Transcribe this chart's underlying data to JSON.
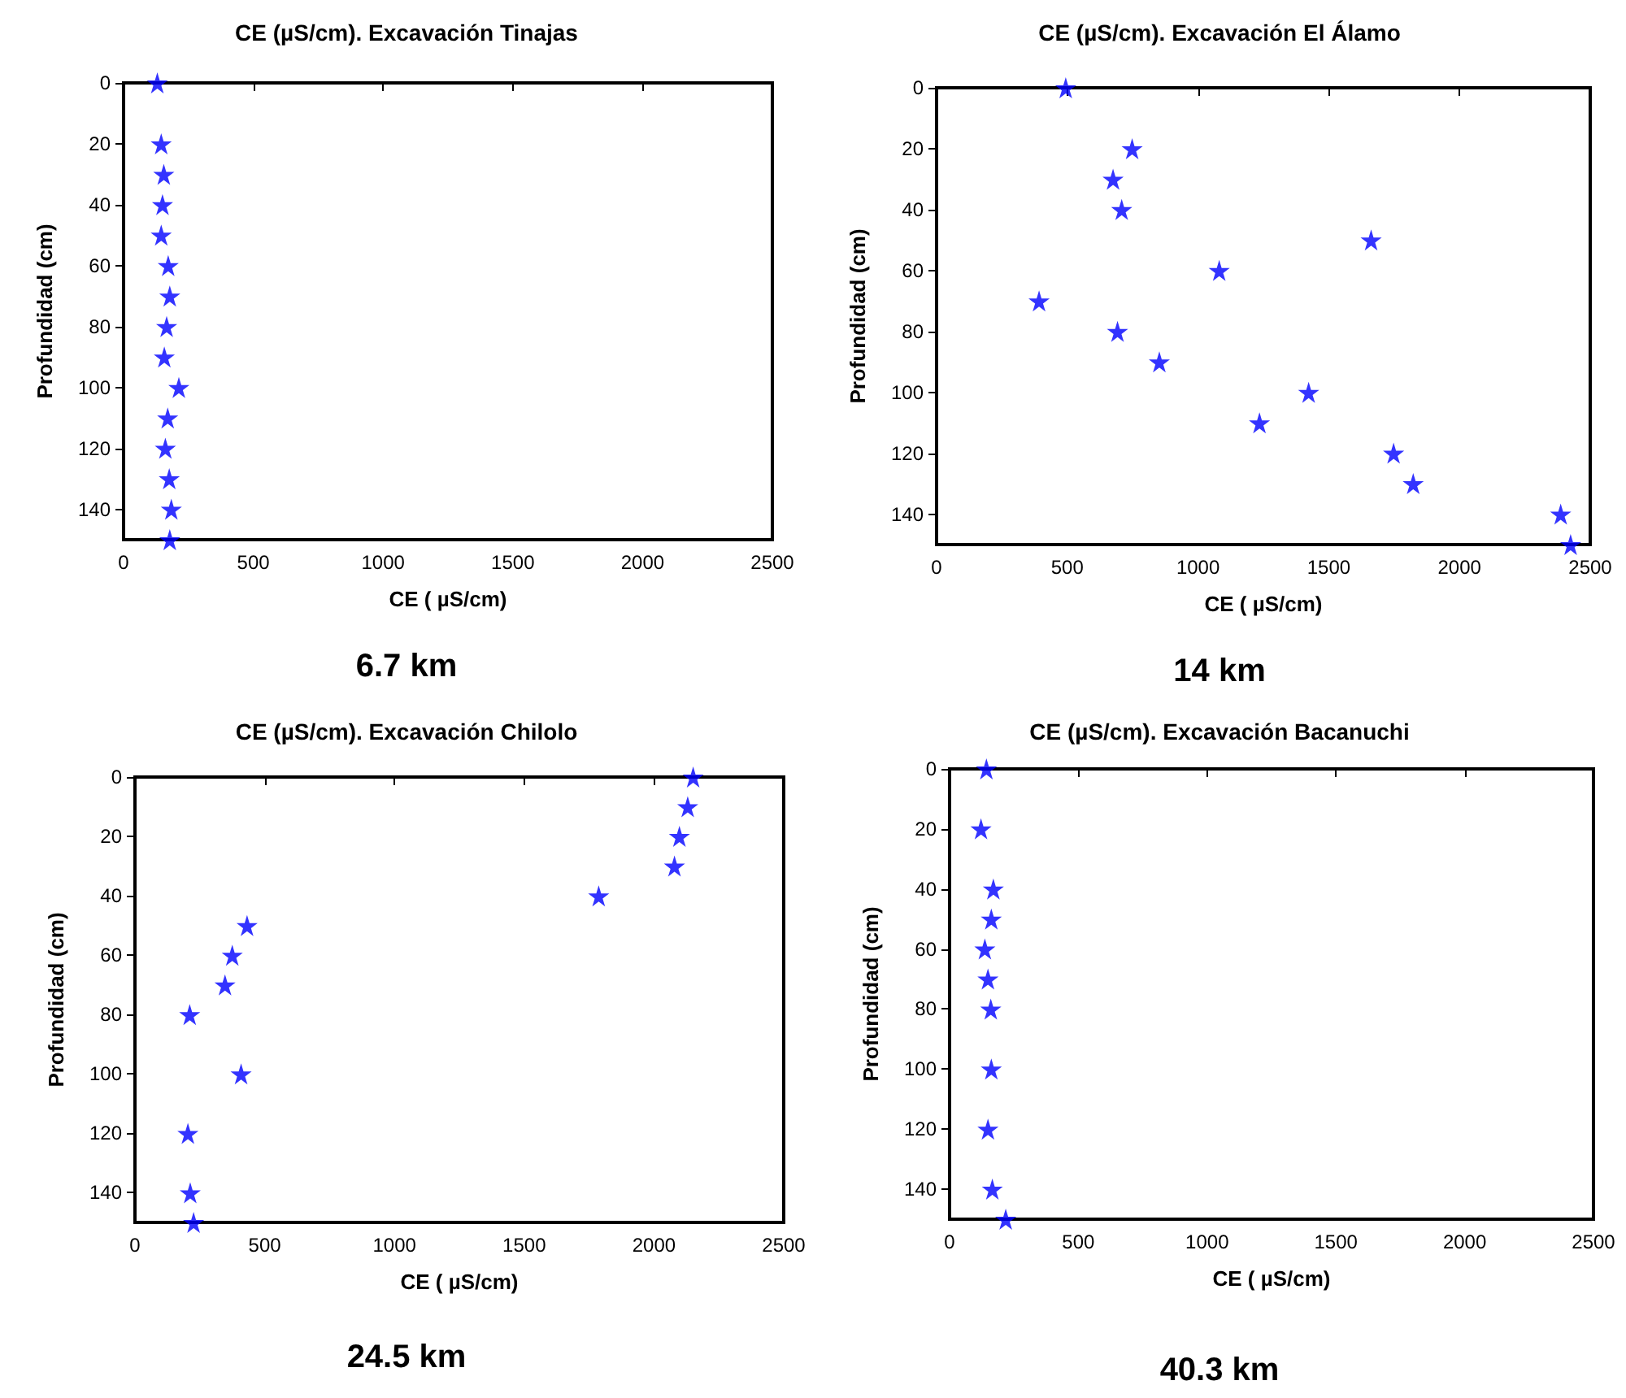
{
  "chart_data": [
    {
      "type": "scatter",
      "title": "CE (µS/cm). Excavación Tinajas",
      "xlabel": "CE ( µS/cm)",
      "ylabel": "Profundidad (cm)",
      "annotations": [
        "6.7 km"
      ],
      "x": [
        130,
        145,
        155,
        150,
        145,
        172,
        178,
        166,
        157,
        213,
        170,
        161,
        176,
        184,
        178
      ],
      "values": [
        0,
        20,
        30,
        40,
        50,
        60,
        70,
        80,
        90,
        100,
        110,
        120,
        130,
        140,
        150
      ],
      "color": "#0000ff",
      "marker": "star",
      "grid": false,
      "xlim": [
        0,
        2500
      ],
      "xticks": [
        0,
        500,
        1000,
        1500,
        2000,
        2500
      ],
      "ylim": [
        150,
        0
      ],
      "yticks": [
        0,
        20,
        40,
        60,
        80,
        100,
        120,
        140
      ]
    },
    {
      "type": "scatter",
      "title": "CE (µS/cm). Excavación El Álamo",
      "xlabel": "CE ( µS/cm)",
      "ylabel": "Profundidad (cm)",
      "annotations": [
        "14 km"
      ],
      "x": [
        494,
        748,
        675,
        708,
        1662,
        1081,
        392,
        692,
        852,
        1423,
        1235,
        1748,
        1823,
        2387,
        2425
      ],
      "values": [
        0,
        20,
        30,
        40,
        50,
        60,
        70,
        80,
        90,
        100,
        110,
        120,
        130,
        140,
        150
      ],
      "color": "#0000ff",
      "marker": "star",
      "grid": false,
      "xlim": [
        0,
        2500
      ],
      "xticks": [
        0,
        500,
        1000,
        1500,
        2000,
        2500
      ],
      "ylim": [
        150,
        0
      ],
      "yticks": [
        0,
        20,
        40,
        60,
        80,
        100,
        120,
        140
      ]
    },
    {
      "type": "scatter",
      "title": "CE (µS/cm). Excavación Chilolo",
      "xlabel": "CE ( µS/cm)",
      "ylabel": "Profundidad (cm)",
      "annotations": [
        "24.5 km"
      ],
      "x": [
        2151,
        2130,
        2098,
        2079,
        1787,
        432,
        375,
        347,
        211,
        409,
        204,
        213,
        226
      ],
      "values": [
        0,
        10,
        20,
        30,
        40,
        50,
        60,
        70,
        80,
        100,
        120,
        140,
        150
      ],
      "color": "#0000ff",
      "marker": "star",
      "grid": false,
      "xlim": [
        0,
        2500
      ],
      "xticks": [
        0,
        500,
        1000,
        1500,
        2000,
        2500
      ],
      "ylim": [
        150,
        0
      ],
      "yticks": [
        0,
        20,
        40,
        60,
        80,
        100,
        120,
        140
      ]
    },
    {
      "type": "scatter",
      "title": "CE (µS/cm). Excavación Bacanuchi",
      "xlabel": "CE ( µS/cm)",
      "ylabel": "Profundidad (cm)",
      "annotations": [
        "40.3 km"
      ],
      "x": [
        143,
        122,
        170,
        162,
        137,
        149,
        160,
        162,
        149,
        166,
        218
      ],
      "values": [
        0,
        20,
        40,
        50,
        60,
        70,
        80,
        100,
        120,
        140,
        150
      ],
      "color": "#0000ff",
      "marker": "star",
      "grid": false,
      "xlim": [
        0,
        2500
      ],
      "xticks": [
        0,
        500,
        1000,
        1500,
        2000,
        2500
      ],
      "ylim": [
        150,
        0
      ],
      "yticks": [
        0,
        20,
        40,
        60,
        80,
        100,
        120,
        140
      ]
    }
  ]
}
